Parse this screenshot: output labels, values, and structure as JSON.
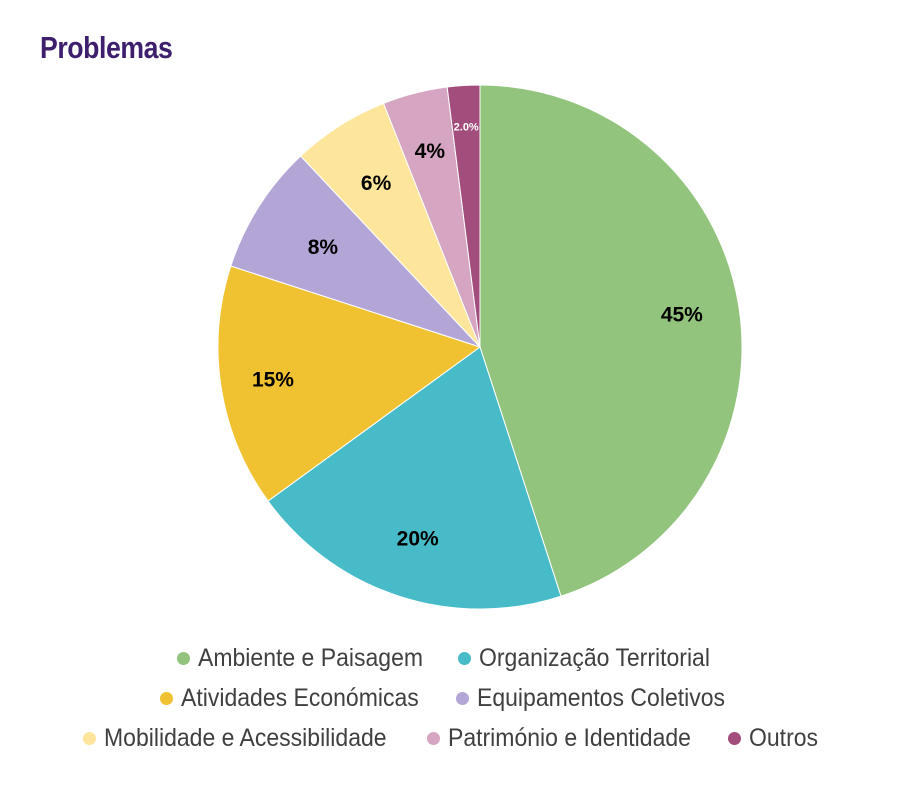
{
  "chart_data": {
    "type": "pie",
    "title": "Problemas",
    "categories": [
      "Ambiente e Paisagem",
      "Organização Territorial",
      "Atividades Económicas",
      "Equipamentos Coletivos",
      "Mobilidade e Acessibilidade",
      "Património e Identidade",
      "Outros"
    ],
    "values": [
      45,
      20,
      15,
      8,
      6,
      4,
      2
    ],
    "data_labels": [
      "45%",
      "20%",
      "15%",
      "8%",
      "6%",
      "4%",
      "2.0%"
    ],
    "colors": [
      "#93c47d",
      "#47bcc8",
      "#f0c232",
      "#b3a5d6",
      "#fde59c",
      "#d5a5c2",
      "#a24d7b"
    ],
    "label_colors": [
      "#000000",
      "#000000",
      "#000000",
      "#000000",
      "#000000",
      "#000000",
      "#ffffff"
    ],
    "start_angle_deg": 0,
    "direction": "clockwise",
    "legend_position": "bottom"
  }
}
